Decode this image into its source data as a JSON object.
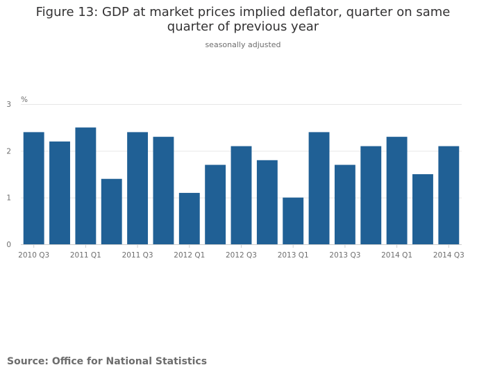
{
  "chart_data": {
    "type": "bar",
    "title": "Figure 13: GDP at market prices implied deflator, quarter on same quarter of previous year",
    "subtitle": "seasonally adjusted",
    "ylabel": "%",
    "ylim": [
      0,
      3
    ],
    "yticks": [
      "0",
      "1",
      "2",
      "3"
    ],
    "grid": true,
    "bar_color": "#206095",
    "categories": [
      "2010 Q3",
      "2010 Q4",
      "2011 Q1",
      "2011 Q2",
      "2011 Q3",
      "2011 Q4",
      "2012 Q1",
      "2012 Q2",
      "2012 Q3",
      "2012 Q4",
      "2013 Q1",
      "2013 Q2",
      "2013 Q3",
      "2013 Q4",
      "2014 Q1",
      "2014 Q2",
      "2014 Q3"
    ],
    "xtick_labels": [
      "2010 Q3",
      "",
      "2011 Q1",
      "",
      "2011 Q3",
      "",
      "2012 Q1",
      "",
      "2012 Q3",
      "",
      "2013 Q1",
      "",
      "2013 Q3",
      "",
      "2014 Q1",
      "",
      "2014 Q3"
    ],
    "values": [
      2.4,
      2.2,
      2.5,
      1.4,
      2.4,
      2.3,
      1.1,
      1.7,
      2.1,
      1.8,
      1.0,
      2.4,
      1.7,
      2.1,
      2.3,
      1.5,
      2.1
    ]
  },
  "source": "Source: Office for National Statistics"
}
